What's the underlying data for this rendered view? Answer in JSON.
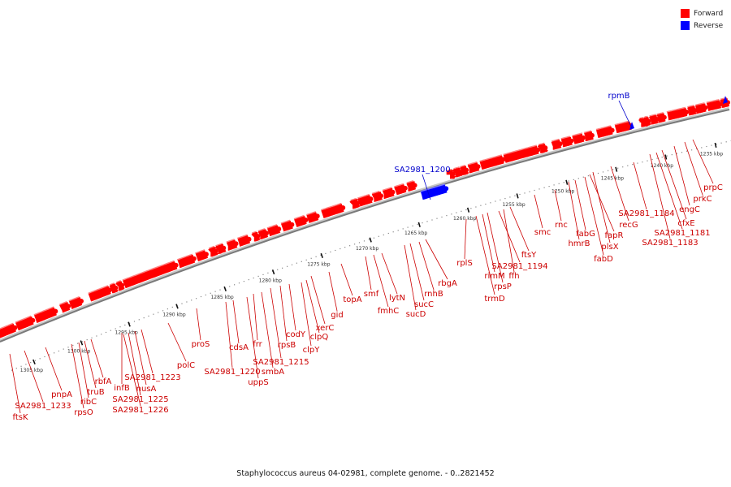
{
  "legend": {
    "forward_label": "Forward",
    "reverse_label": "Reverse",
    "forward_color": "#ff0000",
    "reverse_color": "#0000ff"
  },
  "caption": "Staphylococcus aureus 04-02981, complete genome. - 0..2821452",
  "ticks": [
    "1235 kbp",
    "1240 kbp",
    "1245 kbp",
    "1250 kbp",
    "1255 kbp",
    "1260 kbp",
    "1265 kbp",
    "1270 kbp",
    "1275 kbp",
    "1280 kbp",
    "1285 kbp",
    "1290 kbp",
    "1295 kbp",
    "1300 kbp",
    "1305 kbp"
  ],
  "forward_genes": [
    "prpC",
    "prkC",
    "engC",
    "cfxE",
    "SA2981_1181",
    "SA2981_1183",
    "SA2981_1184",
    "recG",
    "plsX",
    "fapR",
    "fabD",
    "fabG",
    "hmrB",
    "rnc",
    "smc",
    "ftsY",
    "ffh",
    "SA2981_1194",
    "rpsP",
    "rimM",
    "trmD",
    "rplS",
    "rbgA",
    "rnhB",
    "sucC",
    "sucD",
    "lytN",
    "fmhC",
    "smf",
    "topA",
    "gid",
    "xerC",
    "clpQ",
    "clpY",
    "codY",
    "rpsB",
    "SA2981_1215",
    "smbA",
    "frr",
    "uppS",
    "cdsA",
    "SA2981_1220",
    "proS",
    "polC",
    "SA2981_1223",
    "nusA",
    "infB",
    "SA2981_1225",
    "SA2981_1226",
    "rbfA",
    "truB",
    "ribC",
    "rpsO",
    "pnpA",
    "SA2981_1233",
    "ftsK"
  ],
  "reverse_genes": [
    "rpmB",
    "SA2981_1200"
  ]
}
